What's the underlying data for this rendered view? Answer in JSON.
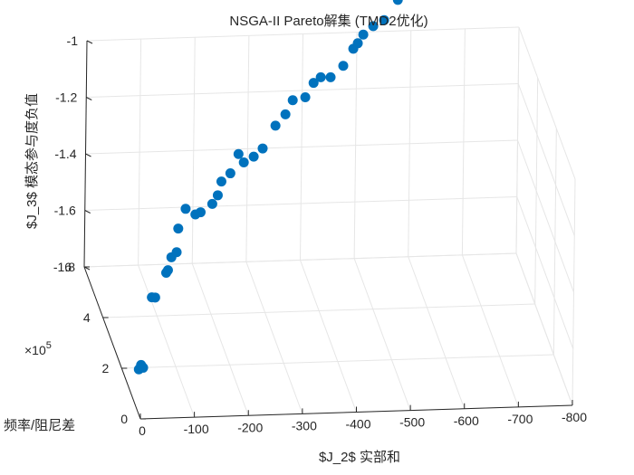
{
  "chart_data": {
    "type": "scatter",
    "title": "NSGA-II Pareto解集 (TMD2优化)",
    "xlabel": "$J_2$ 实部和",
    "ylabel": "频率/阻尼差",
    "zlabel": "$J_3$ 模态参与度负值",
    "x_ticks": [
      "0",
      "-100",
      "-200",
      "-300",
      "-400",
      "-500",
      "-600",
      "-700",
      "-800"
    ],
    "y_ticks": [
      "0",
      "2",
      "4",
      "6"
    ],
    "y_exponent": "×10",
    "y_exponent_power": "5",
    "z_ticks": [
      "-1",
      "-1.2",
      "-1.4",
      "-1.6",
      "-1.8"
    ],
    "xlim": [
      0,
      -800
    ],
    "ylim": [
      0,
      600000
    ],
    "zlim": [
      -1.8,
      -1.0
    ],
    "grid": true,
    "marker_color": "#0072BD",
    "points": [
      [
        -5,
        50000,
        -1.67
      ],
      [
        -12,
        45000,
        -1.66
      ],
      [
        -18,
        100000,
        -1.7
      ],
      [
        -40,
        120000,
        -1.48
      ],
      [
        -48,
        130000,
        -1.49
      ],
      [
        -75,
        170000,
        -1.44
      ],
      [
        -80,
        180000,
        -1.44
      ],
      [
        -95,
        230000,
        -1.44
      ],
      [
        -110,
        260000,
        -1.45
      ],
      [
        -125,
        330000,
        -1.43
      ],
      [
        -140,
        340000,
        -1.37
      ],
      [
        -160,
        350000,
        -1.4
      ],
      [
        -175,
        380000,
        -1.42
      ],
      [
        -200,
        400000,
        -1.41
      ],
      [
        -210,
        400000,
        -1.38
      ],
      [
        -220,
        420000,
        -1.35
      ],
      [
        -240,
        440000,
        -1.34
      ],
      [
        -260,
        470000,
        -1.3
      ],
      [
        -270,
        470000,
        -1.33
      ],
      [
        -290,
        480000,
        -1.32
      ],
      [
        -310,
        500000,
        -1.31
      ],
      [
        -335,
        510000,
        -1.24
      ],
      [
        -355,
        520000,
        -1.21
      ],
      [
        -370,
        530000,
        -1.17
      ],
      [
        -395,
        540000,
        -1.17
      ],
      [
        -410,
        540000,
        -1.12
      ],
      [
        -425,
        550000,
        -1.11
      ],
      [
        -445,
        560000,
        -1.12
      ],
      [
        -470,
        570000,
        -1.09
      ],
      [
        -490,
        580000,
        -1.04
      ],
      [
        -500,
        590000,
        -1.03
      ],
      [
        -510,
        590000,
        -1.0
      ],
      [
        -530,
        600000,
        -0.98
      ],
      [
        -550,
        600000,
        -0.96
      ],
      [
        -575,
        600000,
        -0.89
      ],
      [
        -600,
        600000,
        -0.85
      ],
      [
        -620,
        600000,
        -0.8
      ],
      [
        -630,
        600000,
        -0.72
      ],
      [
        -638,
        600000,
        -0.74
      ],
      [
        -642,
        600000,
        -0.71
      ],
      [
        -648,
        600000,
        -0.7
      ],
      [
        -655,
        600000,
        -0.69
      ]
    ]
  }
}
